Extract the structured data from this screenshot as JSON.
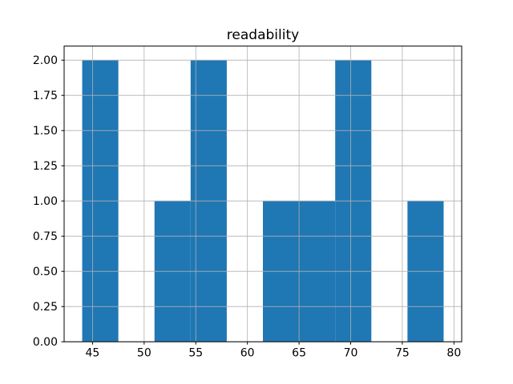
{
  "chart_data": {
    "type": "bar",
    "subtype": "histogram",
    "title": "readability",
    "xlabel": "",
    "ylabel": "",
    "bin_edges": [
      44,
      47.5,
      51,
      54.5,
      58,
      61.5,
      65,
      68.5,
      72,
      75.5,
      79
    ],
    "counts": [
      2,
      0,
      1,
      2,
      0,
      1,
      1,
      2,
      0,
      1
    ],
    "xlim": [
      42.25,
      80.75
    ],
    "ylim": [
      0,
      2.1
    ],
    "x_ticks": [
      45,
      50,
      55,
      60,
      65,
      70,
      75,
      80
    ],
    "x_tick_labels": [
      "45",
      "50",
      "55",
      "60",
      "65",
      "70",
      "75",
      "80"
    ],
    "y_ticks": [
      0,
      0.25,
      0.5,
      0.75,
      1.0,
      1.25,
      1.5,
      1.75,
      2.0
    ],
    "y_tick_labels": [
      "0.00",
      "0.25",
      "0.50",
      "0.75",
      "1.00",
      "1.25",
      "1.50",
      "1.75",
      "2.00"
    ],
    "grid": true,
    "grid_on_top": true,
    "legend_position": "none",
    "colors": {
      "bar": "#1f77b4",
      "grid": "#b0b0b0",
      "spine": "#000000",
      "background": "#ffffff",
      "text": "#000000"
    }
  }
}
